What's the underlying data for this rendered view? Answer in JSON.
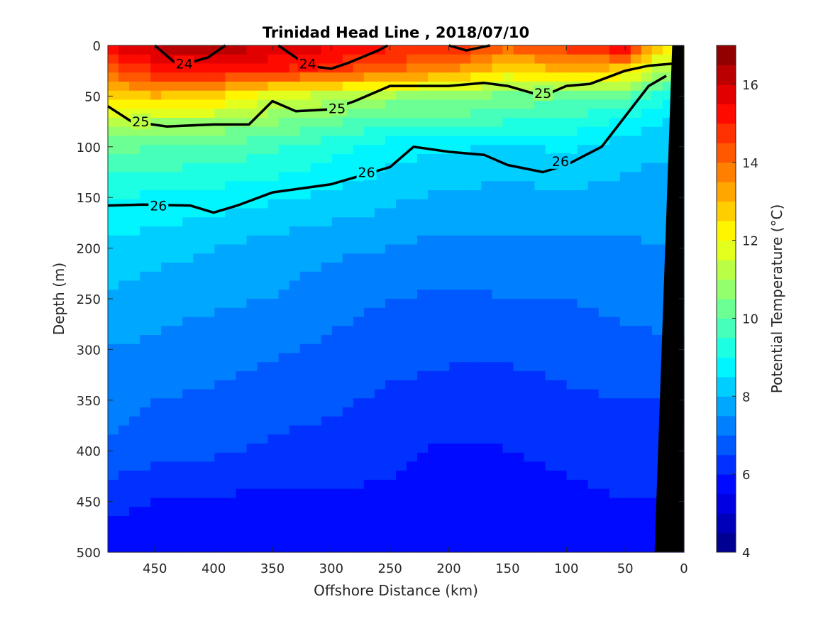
{
  "chart_data": {
    "type": "heatmap",
    "subtype": "filled-contour section",
    "title": "Trinidad Head Line , 2018/07/10",
    "xlabel": "Offshore Distance (km)",
    "ylabel": "Depth (m)",
    "colorbar_label": "Potential Temperature (°C)",
    "xlim": [
      490,
      0
    ],
    "ylim": [
      0,
      500
    ],
    "y_reversed": true,
    "x_reversed": true,
    "xticks": [
      450,
      400,
      350,
      300,
      250,
      200,
      150,
      100,
      50,
      0
    ],
    "yticks": [
      0,
      50,
      100,
      150,
      200,
      250,
      300,
      350,
      400,
      450,
      500
    ],
    "colorbar": {
      "range": [
        4,
        17
      ],
      "ticks": [
        4,
        6,
        8,
        10,
        12,
        14,
        16
      ],
      "colormap": "jet",
      "levels": 26
    },
    "temperature_field": {
      "x_km": [
        490,
        450,
        400,
        350,
        300,
        250,
        200,
        150,
        100,
        50,
        20
      ],
      "depth_m": [
        0,
        25,
        50,
        75,
        100,
        150,
        200,
        250,
        300,
        350,
        400,
        450,
        500
      ],
      "temperature_c": [
        [
          15.6,
          16.2,
          16.5,
          16.0,
          15.6,
          15.2,
          15.3,
          14.2,
          14.8,
          15.8,
          12.5
        ],
        [
          14.2,
          15.0,
          15.3,
          15.0,
          14.6,
          14.0,
          13.6,
          12.5,
          13.0,
          12.6,
          11.0
        ],
        [
          12.6,
          13.0,
          12.6,
          11.6,
          11.3,
          10.9,
          10.8,
          10.3,
          10.2,
          10.0,
          9.2
        ],
        [
          11.2,
          11.0,
          11.0,
          10.6,
          10.2,
          9.6,
          9.8,
          9.5,
          9.4,
          8.9,
          8.5
        ],
        [
          10.2,
          10.0,
          9.9,
          9.6,
          9.2,
          8.7,
          8.6,
          8.4,
          8.6,
          8.2,
          8.1
        ],
        [
          9.0,
          8.9,
          8.8,
          8.6,
          8.4,
          8.1,
          7.9,
          7.8,
          7.9,
          7.8,
          7.8
        ],
        [
          8.4,
          8.2,
          8.0,
          7.8,
          7.6,
          7.5,
          7.3,
          7.4,
          7.4,
          7.4,
          7.5
        ],
        [
          7.9,
          7.7,
          7.6,
          7.5,
          7.2,
          7.0,
          6.9,
          7.0,
          7.0,
          7.2,
          7.2
        ],
        [
          7.5,
          7.4,
          7.2,
          7.1,
          6.9,
          6.7,
          6.6,
          6.6,
          6.7,
          6.8,
          6.9
        ],
        [
          7.2,
          7.0,
          6.9,
          6.7,
          6.6,
          6.4,
          6.3,
          6.3,
          6.4,
          6.5,
          6.5
        ],
        [
          6.9,
          6.7,
          6.6,
          6.4,
          6.3,
          6.1,
          5.9,
          6.0,
          6.1,
          6.2,
          6.2
        ],
        [
          6.2,
          6.0,
          5.9,
          5.9,
          5.9,
          5.9,
          5.8,
          5.8,
          5.9,
          6.0,
          6.0
        ],
        [
          5.5,
          5.6,
          5.6,
          5.5,
          5.6,
          5.8,
          5.7,
          5.7,
          5.7,
          5.8,
          5.9
        ]
      ]
    },
    "isopycnals": [
      {
        "label": "24",
        "x_km": [
          450,
          430,
          405,
          390
        ],
        "depth_m": [
          0,
          20,
          12,
          0
        ]
      },
      {
        "label": "24",
        "x_km": [
          345,
          320,
          300,
          285,
          260,
          252
        ],
        "depth_m": [
          0,
          20,
          23,
          17,
          5,
          0
        ]
      },
      {
        "label": "24",
        "x_km": [
          200,
          185,
          165
        ],
        "depth_m": [
          0,
          5,
          0
        ]
      },
      {
        "label": "25",
        "x_km": [
          490,
          470,
          440,
          400,
          370,
          350,
          330,
          300,
          280,
          250,
          200,
          170,
          150,
          120,
          100,
          80,
          50,
          30,
          10
        ],
        "depth_m": [
          60,
          75,
          80,
          78,
          78,
          55,
          65,
          63,
          55,
          40,
          40,
          37,
          40,
          50,
          40,
          38,
          25,
          20,
          18
        ]
      },
      {
        "label": "26",
        "x_km": [
          490,
          460,
          420,
          400,
          380,
          350,
          300,
          250,
          230,
          200,
          170,
          150,
          120,
          100,
          70,
          50,
          30,
          15
        ],
        "depth_m": [
          158,
          157,
          158,
          165,
          158,
          145,
          137,
          120,
          100,
          105,
          108,
          118,
          125,
          118,
          100,
          70,
          40,
          30
        ]
      }
    ],
    "isopycnal_labels": [
      {
        "text": "24",
        "x_km": 425,
        "depth_m": 18
      },
      {
        "text": "24",
        "x_km": 320,
        "depth_m": 18
      },
      {
        "text": "25",
        "x_km": 462,
        "depth_m": 75
      },
      {
        "text": "25",
        "x_km": 295,
        "depth_m": 62
      },
      {
        "text": "25",
        "x_km": 120,
        "depth_m": 47
      },
      {
        "text": "26",
        "x_km": 447,
        "depth_m": 158
      },
      {
        "text": "26",
        "x_km": 270,
        "depth_m": 125
      },
      {
        "text": "26",
        "x_km": 105,
        "depth_m": 114
      }
    ],
    "topography": {
      "x_km": [
        0,
        10,
        25,
        25,
        0
      ],
      "depth_m": [
        0,
        0,
        500,
        500,
        500
      ]
    }
  }
}
